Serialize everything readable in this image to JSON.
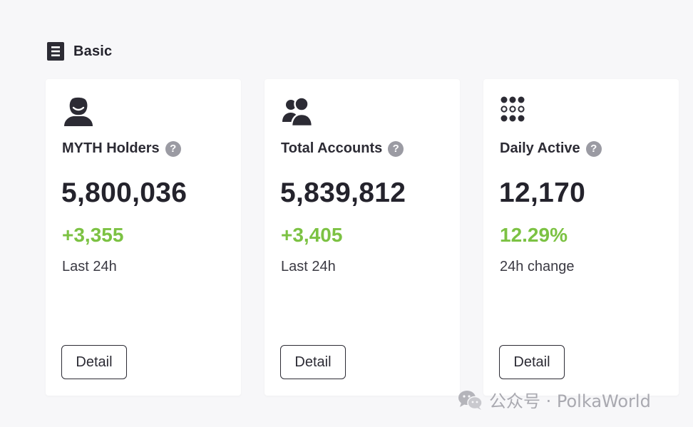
{
  "section": {
    "title": "Basic",
    "icon": "document-icon"
  },
  "cards": [
    {
      "icon": "person-icon",
      "label": "MYTH Holders",
      "value": "5,800,036",
      "change": "+3,355",
      "caption": "Last 24h",
      "button": "Detail"
    },
    {
      "icon": "users-icon",
      "label": "Total Accounts",
      "value": "5,839,812",
      "change": "+3,405",
      "caption": "Last 24h",
      "button": "Detail"
    },
    {
      "icon": "dots-grid-icon",
      "label": "Daily Active",
      "value": "12,170",
      "change": "12.29%",
      "caption": "24h change",
      "button": "Detail"
    }
  ],
  "help_glyph": "?",
  "watermark": {
    "icon": "wechat-icon",
    "text": "公众号 · PolkaWorld"
  },
  "colors": {
    "background": "#f7f7f9",
    "card": "#ffffff",
    "text": "#24232c",
    "positive": "#7cc243",
    "help_icon": "#9b9ba3"
  }
}
